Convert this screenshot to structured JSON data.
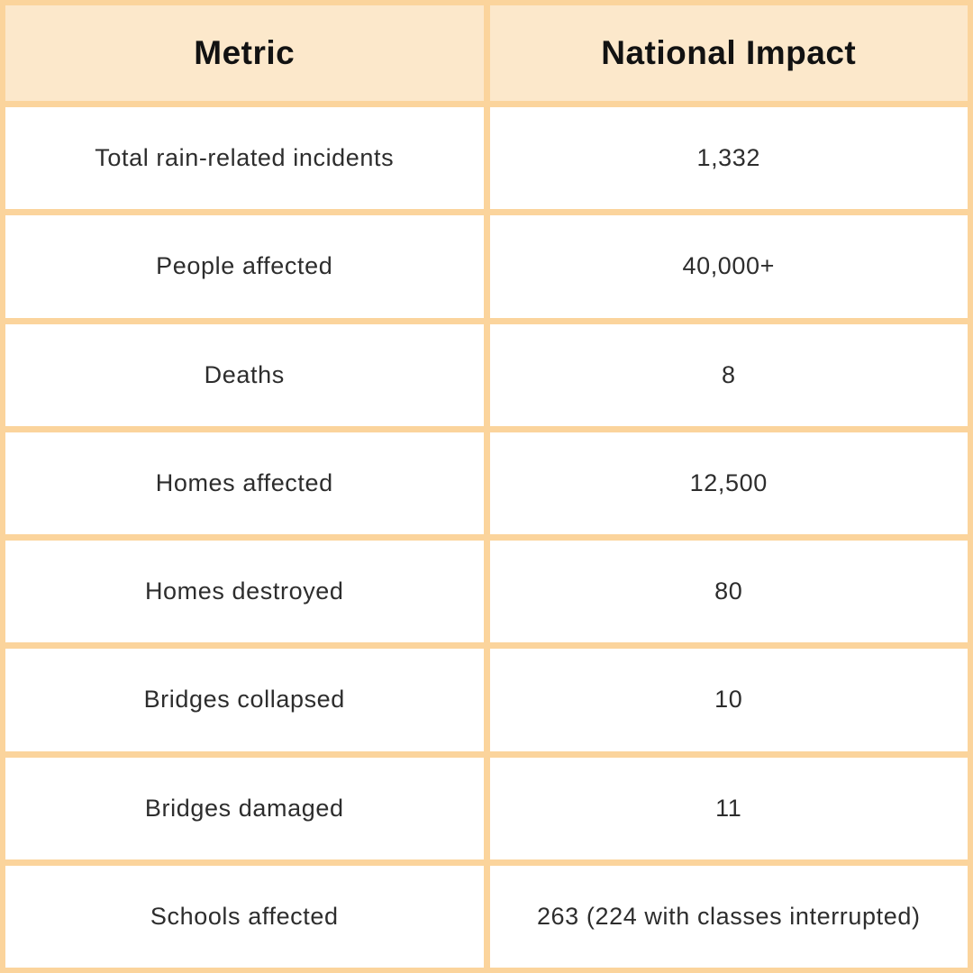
{
  "table": {
    "columns": [
      {
        "label": "Metric"
      },
      {
        "label": "National Impact"
      }
    ],
    "rows": [
      {
        "metric": "Total rain-related incidents",
        "value": "1,332"
      },
      {
        "metric": "People affected",
        "value": "40,000+"
      },
      {
        "metric": "Deaths",
        "value": "8"
      },
      {
        "metric": "Homes affected",
        "value": "12,500"
      },
      {
        "metric": "Homes destroyed",
        "value": "80"
      },
      {
        "metric": "Bridges collapsed",
        "value": "10"
      },
      {
        "metric": "Bridges damaged",
        "value": "11"
      },
      {
        "metric": "Schools affected",
        "value": "263 (224 with classes interrupted)"
      }
    ],
    "colors": {
      "header_bg": "#fce8cb",
      "grid": "#fbd49c",
      "cell_bg": "#ffffff",
      "header_text": "#121212",
      "body_text": "#2d2d2d"
    }
  }
}
